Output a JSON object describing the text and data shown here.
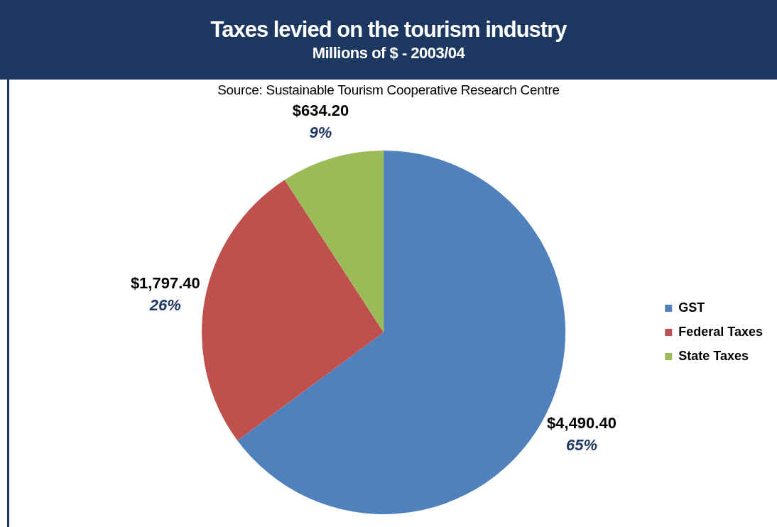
{
  "chart_data": {
    "type": "pie",
    "title": "Taxes levied on the tourism industry",
    "subtitle": "Millions of $ - 2003/04",
    "annotations": [
      "Source:  Sustainable Tourism Cooperative Research Centre"
    ],
    "categories": [
      "GST",
      "Federal Taxes",
      "State Taxes"
    ],
    "values": [
      4490.4,
      1797.4,
      634.2
    ],
    "colors": [
      "#4f81bd",
      "#c0504d",
      "#9bbb59"
    ],
    "value_labels": [
      "$4,490.40\n65%",
      "$1,797.40\n26%",
      "$634.20\n9%"
    ],
    "legend": "right"
  }
}
